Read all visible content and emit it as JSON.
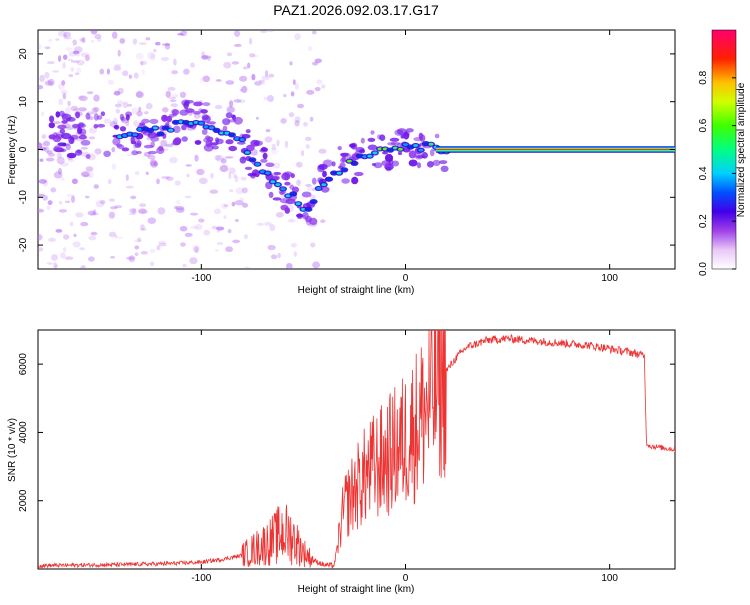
{
  "title": "PAZ1.2026.092.03.17.G17",
  "chart_data": [
    {
      "type": "heatmap",
      "title": "PAZ1.2026.092.03.17.G17",
      "xlabel": "Height of straight line (km)",
      "ylabel": "Frequency (Hz)",
      "xlim": [
        -180,
        132
      ],
      "ylim": [
        -25,
        25
      ],
      "xticks": [
        -100,
        0,
        100
      ],
      "yticks": [
        -20,
        -10,
        0,
        10,
        20
      ],
      "ridge": [
        {
          "x": -140,
          "y": 3
        },
        {
          "x": -120,
          "y": 4
        },
        {
          "x": -105,
          "y": 6
        },
        {
          "x": -90,
          "y": 4
        },
        {
          "x": -80,
          "y": 2
        },
        {
          "x": -75,
          "y": -2
        },
        {
          "x": -65,
          "y": -6
        },
        {
          "x": -55,
          "y": -10
        },
        {
          "x": -48,
          "y": -13
        },
        {
          "x": -42,
          "y": -8
        },
        {
          "x": -35,
          "y": -5
        },
        {
          "x": -28,
          "y": -3
        },
        {
          "x": -20,
          "y": -1
        },
        {
          "x": -10,
          "y": 0
        },
        {
          "x": 0,
          "y": 1
        },
        {
          "x": 10,
          "y": 0.5
        },
        {
          "x": 20,
          "y": 0
        },
        {
          "x": 132,
          "y": 0
        }
      ],
      "colorbar": {
        "label": "Normalized spectral amplitude",
        "min": 0.0,
        "max": 1.0,
        "ticks": [
          0.0,
          0.2,
          0.4,
          0.6,
          0.8
        ]
      }
    },
    {
      "type": "line",
      "xlabel": "Height of straight line (km)",
      "ylabel": "SNR (10 * v/v)",
      "xlim": [
        -180,
        132
      ],
      "ylim": [
        0,
        7000
      ],
      "xticks": [
        -100,
        0,
        100
      ],
      "yticks": [
        2000,
        4000,
        6000
      ],
      "color": "#ee3333",
      "series": [
        {
          "name": "SNR",
          "x": [
            -180,
            -150,
            -120,
            -100,
            -90,
            -80,
            -75,
            -70,
            -65,
            -60,
            -55,
            -50,
            -45,
            -40,
            -35,
            -33,
            -30,
            -25,
            -20,
            -15,
            -10,
            -5,
            0,
            5,
            10,
            15,
            20,
            25,
            30,
            40,
            50,
            60,
            70,
            80,
            90,
            100,
            110,
            117,
            118,
            120,
            132
          ],
          "y": [
            100,
            120,
            150,
            200,
            280,
            400,
            550,
            700,
            850,
            1100,
            900,
            500,
            250,
            120,
            100,
            800,
            1800,
            2300,
            2700,
            3000,
            3200,
            3500,
            3800,
            4200,
            4700,
            5300,
            5800,
            6200,
            6500,
            6700,
            6750,
            6700,
            6650,
            6600,
            6550,
            6450,
            6350,
            6250,
            3700,
            3600,
            3500
          ]
        }
      ]
    }
  ]
}
